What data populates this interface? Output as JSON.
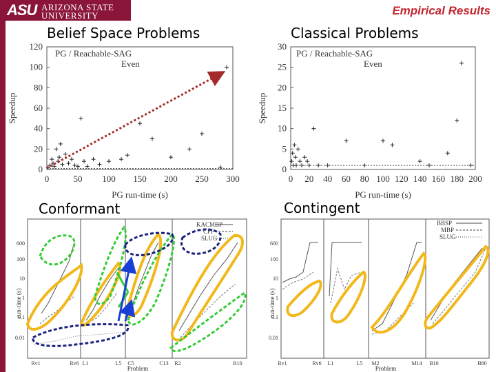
{
  "header": {
    "logo_mark": "ASU",
    "logo_line1": "ARIZONA STATE",
    "logo_line2": "UNIVERSITY",
    "title": "Empirical Results"
  },
  "panels": {
    "belief_title": "Belief Space Problems",
    "classical_title": "Classical Problems",
    "conformant_title": "Conformant",
    "contingent_title": "Contingent"
  },
  "colors": {
    "brand": "#8a1538",
    "title": "#c4262e",
    "arrow": "#a52a2a",
    "yellow": "#f2b81b",
    "green": "#33cc33",
    "navy": "#1a237e",
    "blue": "#1a3fd6"
  },
  "chart_data": [
    {
      "type": "scatter",
      "title": "",
      "xlabel": "PG run-time (s)",
      "ylabel": "Speedup",
      "xlim": [
        0,
        300
      ],
      "ylim": [
        0,
        120
      ],
      "xticks": [
        0,
        50,
        100,
        150,
        200,
        250,
        300
      ],
      "yticks": [
        0,
        20,
        40,
        60,
        80,
        100,
        120
      ],
      "legend_position": "top-left",
      "series": [
        {
          "name": "PG / Reachable-SAG",
          "marker": "+",
          "points": [
            [
              2,
              2
            ],
            [
              5,
              4
            ],
            [
              8,
              10
            ],
            [
              10,
              6
            ],
            [
              12,
              3
            ],
            [
              15,
              20
            ],
            [
              18,
              8
            ],
            [
              20,
              12
            ],
            [
              22,
              25
            ],
            [
              25,
              5
            ],
            [
              30,
              15
            ],
            [
              35,
              6
            ],
            [
              40,
              10
            ],
            [
              45,
              4
            ],
            [
              50,
              3
            ],
            [
              55,
              50
            ],
            [
              60,
              8
            ],
            [
              65,
              3
            ],
            [
              75,
              10
            ],
            [
              85,
              5
            ],
            [
              100,
              8
            ],
            [
              120,
              10
            ],
            [
              130,
              14
            ],
            [
              150,
              45
            ],
            [
              170,
              30
            ],
            [
              200,
              12
            ],
            [
              230,
              20
            ],
            [
              250,
              35
            ],
            [
              280,
              2
            ],
            [
              290,
              100
            ]
          ]
        },
        {
          "name": "Even",
          "style": "line",
          "points": [
            [
              0,
              1
            ],
            [
              300,
              1
            ]
          ]
        }
      ]
    },
    {
      "type": "scatter",
      "title": "",
      "xlabel": "PG run-time (s)",
      "ylabel": "Speedup",
      "xlim": [
        0,
        200
      ],
      "ylim": [
        0,
        30
      ],
      "xticks": [
        0,
        20,
        40,
        60,
        80,
        100,
        120,
        140,
        160,
        180,
        200
      ],
      "yticks": [
        0,
        5,
        10,
        15,
        20,
        25,
        30
      ],
      "legend_position": "top-left",
      "series": [
        {
          "name": "PG / Reachable-SAG",
          "marker": "+",
          "points": [
            [
              1,
              2
            ],
            [
              2,
              4
            ],
            [
              3,
              1
            ],
            [
              4,
              6
            ],
            [
              5,
              3
            ],
            [
              6,
              1
            ],
            [
              8,
              5
            ],
            [
              10,
              2
            ],
            [
              12,
              1
            ],
            [
              15,
              3
            ],
            [
              18,
              2
            ],
            [
              20,
              1
            ],
            [
              25,
              10
            ],
            [
              30,
              1
            ],
            [
              40,
              1
            ],
            [
              60,
              7
            ],
            [
              80,
              1
            ],
            [
              100,
              7
            ],
            [
              110,
              6
            ],
            [
              140,
              2
            ],
            [
              150,
              1
            ],
            [
              170,
              4
            ],
            [
              180,
              12
            ],
            [
              185,
              26
            ],
            [
              195,
              1
            ]
          ]
        },
        {
          "name": "Even",
          "style": "line",
          "points": [
            [
              0,
              1
            ],
            [
              200,
              1
            ]
          ]
        }
      ]
    },
    {
      "type": "line",
      "title": "",
      "xlabel": "Problem",
      "ylabel": "run-time (s)",
      "yscale": "log",
      "yticks": [
        "0.01",
        "0.1",
        "1",
        "10",
        "100",
        "600"
      ],
      "xticks": [
        "Rv1",
        "Rv6",
        "L1",
        "L5",
        "C5",
        "C13",
        "R2",
        "R10"
      ],
      "legend_position": "top-right",
      "series": [
        {
          "name": "KACMBP"
        },
        {
          "name": "CFF"
        },
        {
          "name": "SLUG"
        }
      ]
    },
    {
      "type": "line",
      "title": "",
      "xlabel": "Problem",
      "ylabel": "run-time (s)",
      "yscale": "log",
      "yticks": [
        "0.01",
        "0.1",
        "1",
        "10",
        "100",
        "600"
      ],
      "xticks": [
        "Rv1",
        "Rv6",
        "L1",
        "L5",
        "M2",
        "M14",
        "B10",
        "B80"
      ],
      "legend_position": "top-right",
      "series": [
        {
          "name": "BBSP"
        },
        {
          "name": "MBP"
        },
        {
          "name": "SLUG"
        }
      ]
    }
  ]
}
